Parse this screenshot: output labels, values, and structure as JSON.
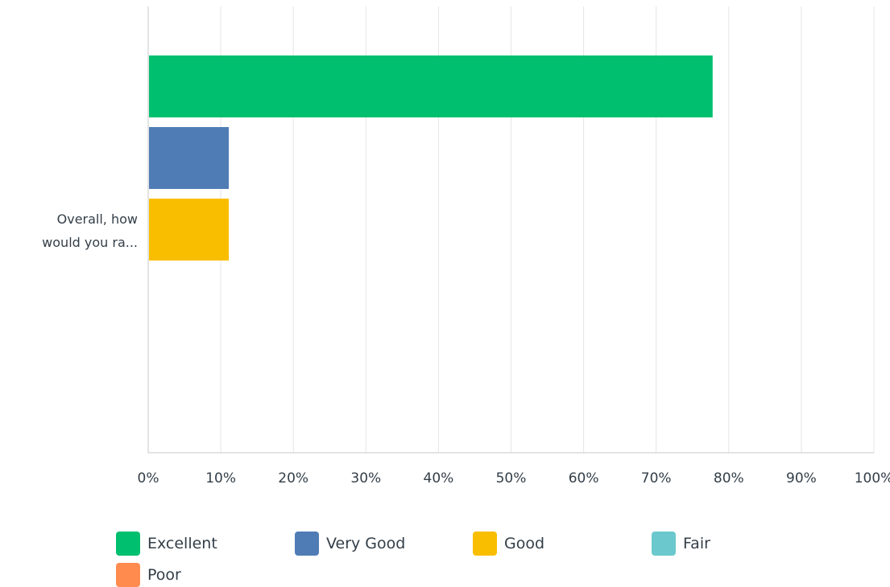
{
  "colors": {
    "excellent": "#00bf6f",
    "very_good": "#507cb6",
    "good": "#f9be00",
    "fair": "#6bc8cd",
    "poor": "#ff8b4f",
    "grid": "#e5e5e5",
    "axis": "#c9c9c9"
  },
  "chart_data": {
    "type": "bar",
    "orientation": "horizontal",
    "categories": [
      "Overall, how would you ra..."
    ],
    "category_label_lines": [
      "Overall, how",
      "would you ra..."
    ],
    "x_ticks": [
      "0%",
      "10%",
      "20%",
      "30%",
      "40%",
      "50%",
      "60%",
      "70%",
      "80%",
      "90%",
      "100%"
    ],
    "xlim": [
      0,
      100
    ],
    "grid": true,
    "legend_position": "bottom",
    "series": [
      {
        "name": "Excellent",
        "values": [
          77.78
        ],
        "color": "#00bf6f"
      },
      {
        "name": "Very Good",
        "values": [
          11.11
        ],
        "color": "#507cb6"
      },
      {
        "name": "Good",
        "values": [
          11.11
        ],
        "color": "#f9be00"
      },
      {
        "name": "Fair",
        "values": [
          0
        ],
        "color": "#6bc8cd"
      },
      {
        "name": "Poor",
        "values": [
          0
        ],
        "color": "#ff8b4f"
      }
    ]
  }
}
